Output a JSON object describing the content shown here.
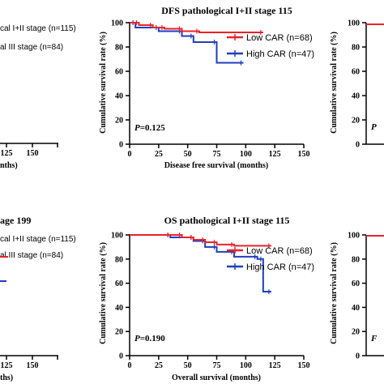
{
  "left_fragment": {
    "top": {
      "title_part": "",
      "legend_1": "cal I+II stage (n=115)",
      "legend_2": "al III stage (n=84)",
      "tick_125": "125",
      "tick_150": "150",
      "xlabel_part": "nths)"
    },
    "bottom": {
      "title_part": "age 199",
      "legend_1": "cal I+II stage (n=115)",
      "legend_2": "al III stage (n=84)",
      "tick_125": "125",
      "tick_150": "150",
      "xlabel_part": "ths)"
    }
  },
  "top_partial_title": "gical I+II stage 115",
  "right_fragment": {
    "top": {
      "ylabel": "Cumulative survival rate (%)",
      "ticks": [
        "100",
        "80",
        "60",
        "40",
        "20",
        "0"
      ],
      "p_part": "P"
    },
    "bottom": {
      "ylabel": "Cumulative survival rate (%)",
      "ticks": [
        "100",
        "80",
        "60",
        "40",
        "20",
        "0"
      ],
      "p_part": "F"
    }
  },
  "colors": {
    "low": "#e8232a",
    "high": "#1f3fbf",
    "axis": "#000000",
    "line_left": "#1f3fbf"
  },
  "chart_data": [
    {
      "type": "line",
      "title": "DFS  pathological I+II stage 115",
      "xlabel": "Disease free survival (months)",
      "ylabel": "Cumulative survival rate (%)",
      "xlim": [
        0,
        150
      ],
      "ylim": [
        0,
        100
      ],
      "xticks": [
        "0",
        "25",
        "50",
        "75",
        "100",
        "125",
        "150"
      ],
      "yticks": [
        "0",
        "20",
        "40",
        "60",
        "80",
        "100"
      ],
      "annotation": "P=0.125",
      "legend": "top-right",
      "series": [
        {
          "name": "Low CAR (n=68)",
          "color": "#e8232a",
          "steps": [
            [
              0,
              100
            ],
            [
              8,
              98
            ],
            [
              20,
              96
            ],
            [
              30,
              95
            ],
            [
              45,
              93
            ],
            [
              60,
              92
            ],
            [
              115,
              92
            ]
          ]
        },
        {
          "name": "High CAR (n=47)",
          "color": "#1f3fbf",
          "steps": [
            [
              0,
              100
            ],
            [
              5,
              96
            ],
            [
              25,
              93
            ],
            [
              45,
              89
            ],
            [
              55,
              84
            ],
            [
              75,
              67
            ],
            [
              98,
              67
            ]
          ]
        }
      ]
    },
    {
      "type": "line",
      "title": "OS  pathological I+II stage 115",
      "xlabel": "Overall survival (months)",
      "ylabel": "Cumulative survival rate (%)",
      "xlim": [
        0,
        150
      ],
      "ylim": [
        0,
        100
      ],
      "xticks": [
        "0",
        "25",
        "50",
        "75",
        "100",
        "125",
        "150"
      ],
      "yticks": [
        "0",
        "20",
        "40",
        "60",
        "80",
        "100"
      ],
      "annotation": "P=0.190",
      "legend": "top-right",
      "series": [
        {
          "name": "Low CAR (n=68)",
          "color": "#e8232a",
          "steps": [
            [
              0,
              100
            ],
            [
              35,
              100
            ],
            [
              45,
              98
            ],
            [
              55,
              96
            ],
            [
              65,
              94
            ],
            [
              75,
              92
            ],
            [
              90,
              91
            ],
            [
              122,
              91
            ]
          ]
        },
        {
          "name": "High CAR (n=47)",
          "color": "#1f3fbf",
          "steps": [
            [
              0,
              100
            ],
            [
              35,
              98
            ],
            [
              55,
              95
            ],
            [
              65,
              90
            ],
            [
              75,
              86
            ],
            [
              90,
              82
            ],
            [
              110,
              80
            ],
            [
              115,
              53
            ],
            [
              122,
              53
            ]
          ]
        }
      ]
    }
  ]
}
